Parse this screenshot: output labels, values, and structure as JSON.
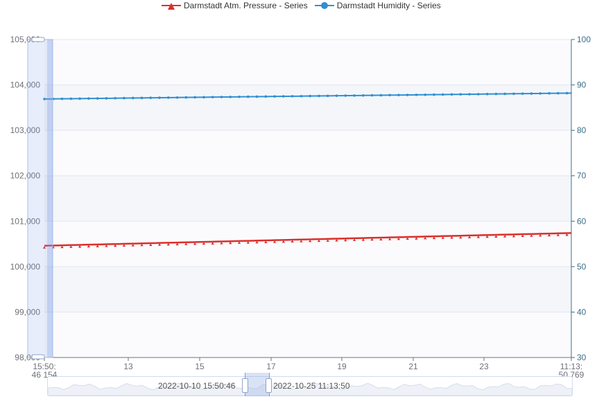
{
  "legend": {
    "items": [
      {
        "label": "Darmstadt Atm. Pressure - Series",
        "color": "#d9302c",
        "icon": "triangle-marker-icon"
      },
      {
        "label": "Darmstadt Humidity - Series",
        "color": "#2f8fd1",
        "icon": "circle-marker-icon"
      }
    ]
  },
  "zoom": {
    "start_label": "2022-10-10 15:50:46",
    "end_label": "2022-10-25 11:13:50"
  },
  "chart_data": {
    "type": "line",
    "x_tick_labels": [
      "15:50:\n46 154",
      "13",
      "15",
      "17",
      "19",
      "21",
      "23",
      "11:13:\n50 769"
    ],
    "y_left": {
      "ticks": [
        "98,000",
        "99,000",
        "100,000",
        "101,000",
        "102,000",
        "103,000",
        "104,000",
        "105,000"
      ],
      "ylim": [
        98000,
        105000
      ]
    },
    "y_right": {
      "ticks": [
        "30",
        "40",
        "50",
        "60",
        "70",
        "80",
        "90",
        "100"
      ],
      "ylim": [
        30,
        100
      ]
    },
    "grid": true,
    "legend_position": "top-center",
    "series": [
      {
        "name": "Darmstadt Atm. Pressure - Series",
        "axis": "left",
        "color": "#d9302c",
        "marker": "triangle",
        "start": 100460,
        "end": 100740,
        "points": 120
      },
      {
        "name": "Darmstadt Humidity - Series",
        "axis": "right",
        "color": "#2f8fd1",
        "marker": "circle",
        "start": 86.9,
        "end": 88.2,
        "points": 120
      }
    ]
  }
}
